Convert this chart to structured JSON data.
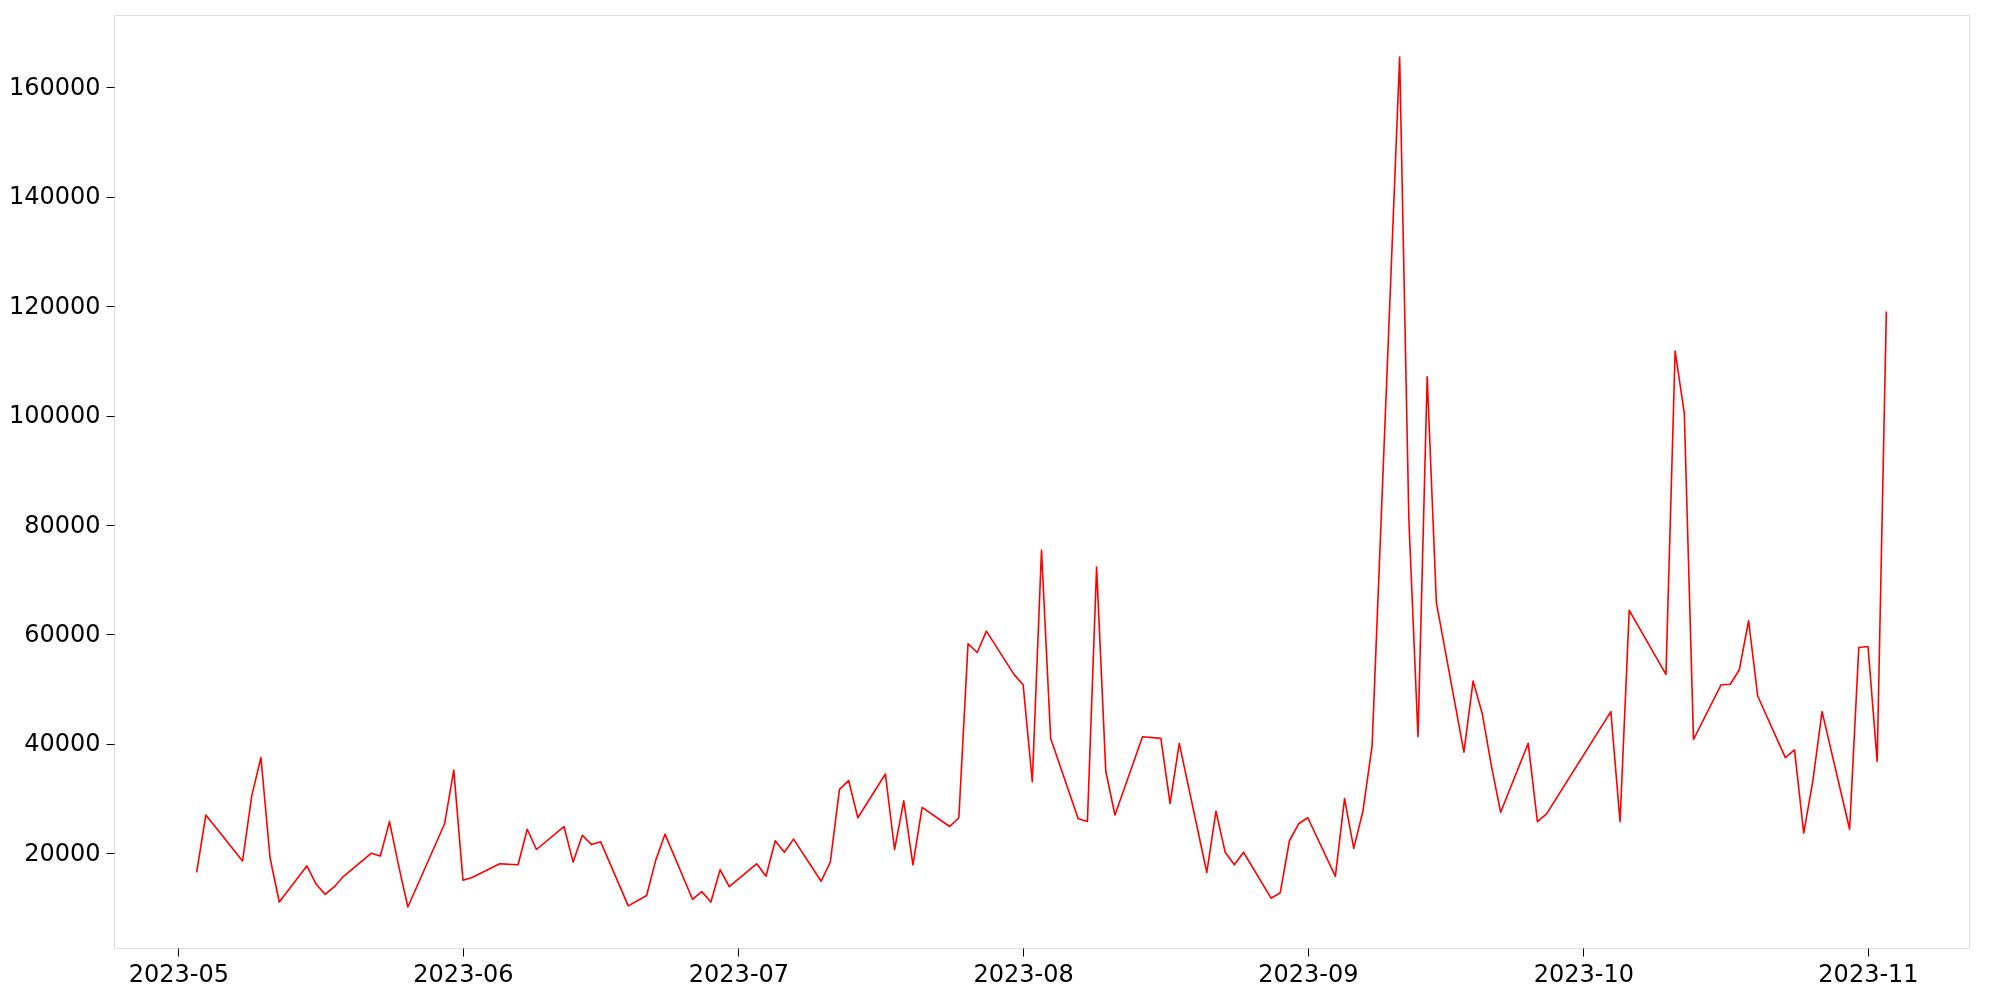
{
  "chart_data": {
    "type": "line",
    "x": [
      "2023-05-03",
      "2023-05-04",
      "2023-05-08",
      "2023-05-09",
      "2023-05-10",
      "2023-05-11",
      "2023-05-12",
      "2023-05-15",
      "2023-05-16",
      "2023-05-17",
      "2023-05-18",
      "2023-05-19",
      "2023-05-22",
      "2023-05-23",
      "2023-05-24",
      "2023-05-25",
      "2023-05-26",
      "2023-05-30",
      "2023-05-31",
      "2023-06-01",
      "2023-06-02",
      "2023-06-05",
      "2023-06-07",
      "2023-06-08",
      "2023-06-09",
      "2023-06-12",
      "2023-06-13",
      "2023-06-14",
      "2023-06-15",
      "2023-06-16",
      "2023-06-19",
      "2023-06-21",
      "2023-06-22",
      "2023-06-23",
      "2023-06-26",
      "2023-06-27",
      "2023-06-28",
      "2023-06-29",
      "2023-06-30",
      "2023-07-03",
      "2023-07-04",
      "2023-07-05",
      "2023-07-06",
      "2023-07-07",
      "2023-07-10",
      "2023-07-11",
      "2023-07-12",
      "2023-07-13",
      "2023-07-14",
      "2023-07-17",
      "2023-07-18",
      "2023-07-19",
      "2023-07-20",
      "2023-07-21",
      "2023-07-24",
      "2023-07-25",
      "2023-07-26",
      "2023-07-27",
      "2023-07-28",
      "2023-07-31",
      "2023-08-01",
      "2023-08-02",
      "2023-08-03",
      "2023-08-04",
      "2023-08-07",
      "2023-08-08",
      "2023-08-09",
      "2023-08-10",
      "2023-08-11",
      "2023-08-14",
      "2023-08-16",
      "2023-08-17",
      "2023-08-18",
      "2023-08-21",
      "2023-08-22",
      "2023-08-23",
      "2023-08-24",
      "2023-08-25",
      "2023-08-28",
      "2023-08-29",
      "2023-08-30",
      "2023-08-31",
      "2023-09-01",
      "2023-09-04",
      "2023-09-05",
      "2023-09-06",
      "2023-09-07",
      "2023-09-08",
      "2023-09-11",
      "2023-09-12",
      "2023-09-13",
      "2023-09-14",
      "2023-09-15",
      "2023-09-18",
      "2023-09-19",
      "2023-09-20",
      "2023-09-21",
      "2023-09-22",
      "2023-09-25",
      "2023-09-26",
      "2023-09-27",
      "2023-10-04",
      "2023-10-05",
      "2023-10-06",
      "2023-10-10",
      "2023-10-11",
      "2023-10-12",
      "2023-10-13",
      "2023-10-16",
      "2023-10-17",
      "2023-10-18",
      "2023-10-19",
      "2023-10-20",
      "2023-10-23",
      "2023-10-24",
      "2023-10-25",
      "2023-10-26",
      "2023-10-27",
      "2023-10-30",
      "2023-10-31",
      "2023-11-01",
      "2023-11-02",
      "2023-11-03"
    ],
    "series": [
      {
        "color": "#ff0000",
        "values": [
          16500,
          27000,
          18600,
          30500,
          37500,
          19100,
          11100,
          17700,
          14400,
          12500,
          13900,
          15800,
          20000,
          19500,
          25800,
          17700,
          10200,
          25400,
          35200,
          15100,
          15600,
          18100,
          17900,
          24400,
          20700,
          24900,
          18400,
          23300,
          21600,
          22100,
          10400,
          12300,
          18800,
          23500,
          11600,
          13000,
          11100,
          17000,
          13900,
          18100,
          15800,
          22300,
          20200,
          22600,
          14900,
          18400,
          31700,
          33300,
          26500,
          34500,
          20700,
          29600,
          17900,
          28400,
          24900,
          26500,
          58300,
          56700,
          60600,
          52700,
          50800,
          33100,
          75400,
          41000,
          26300,
          25800,
          72300,
          35000,
          27000,
          41300,
          41000,
          29100,
          40100,
          16500,
          27700,
          20200,
          17900,
          20200,
          11800,
          12800,
          22300,
          25400,
          26500,
          15800,
          30000,
          20900,
          27700,
          39600,
          165500,
          81200,
          41300,
          107100,
          65800,
          38500,
          51500,
          45500,
          35900,
          27500,
          40100,
          25800,
          27200,
          45900,
          25800,
          64400,
          52700,
          111800,
          100400,
          40800,
          50800,
          50900,
          53600,
          62500,
          48700,
          37500,
          38900,
          23700,
          33300,
          45900,
          24400,
          57600,
          57800,
          36800,
          119000
        ]
      }
    ],
    "xlim": [
      "2023-04-24",
      "2023-11-12"
    ],
    "xticks": [
      "2023-05",
      "2023-06",
      "2023-07",
      "2023-08",
      "2023-09",
      "2023-10",
      "2023-11"
    ],
    "ylim": [
      2700,
      173200
    ],
    "yticks": [
      20000,
      40000,
      60000,
      80000,
      100000,
      120000,
      140000,
      160000
    ],
    "grid": false,
    "legend": false
  }
}
